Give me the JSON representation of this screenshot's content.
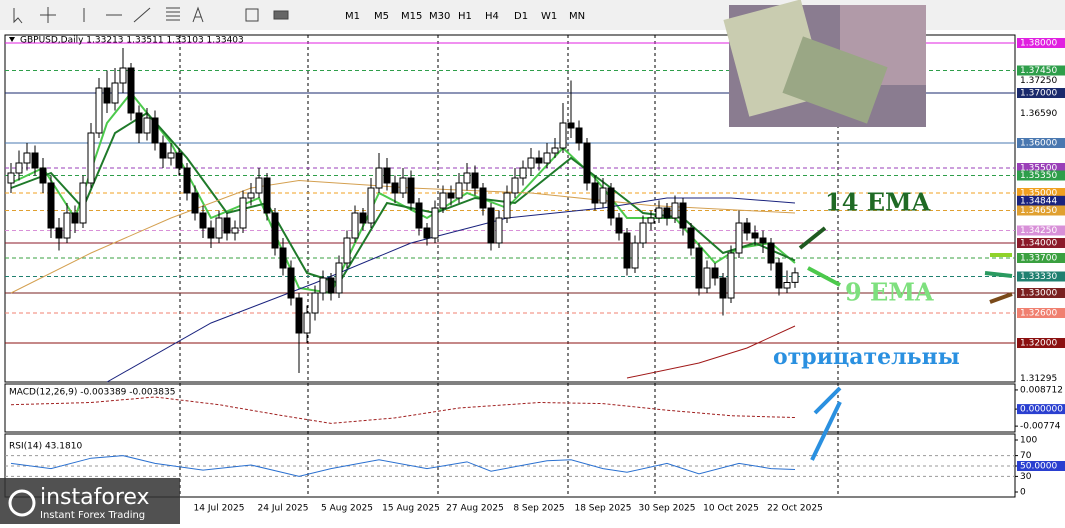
{
  "toolbar": {
    "timeframes": [
      "M1",
      "M5",
      "M15",
      "M30",
      "H1",
      "H4",
      "D1",
      "W1",
      "MN"
    ]
  },
  "logo": {
    "name": "instaforex",
    "tagline": "Instant Forex Trading"
  },
  "chart_data": {
    "type": "candlestick",
    "header": "GBPUSD,Daily  1.33213 1.33511 1.33103 1.33403",
    "categories": [
      null,
      null,
      null,
      null,
      null,
      null,
      null,
      null,
      null,
      null,
      null,
      null,
      null,
      null,
      null,
      null,
      null,
      null,
      null,
      null,
      null,
      null,
      null,
      null,
      null,
      null,
      "14 Jul 2025",
      null,
      null,
      null,
      null,
      null,
      null,
      null,
      "24 Jul 2025",
      null,
      null,
      null,
      null,
      null,
      null,
      null,
      "5 Aug 2025",
      null,
      null,
      null,
      null,
      null,
      null,
      null,
      "15 Aug 2025",
      null,
      null,
      null,
      null,
      null,
      null,
      null,
      "27 Aug 2025",
      null,
      null,
      null,
      null,
      null,
      null,
      null,
      "8 Sep 2025",
      null,
      null,
      null,
      null,
      null,
      null,
      null,
      "18 Sep 2025",
      null,
      null,
      null,
      null,
      null,
      null,
      null,
      "30 Sep 2025",
      null,
      null,
      null,
      null,
      null,
      null,
      null,
      "10 Oct 2025",
      null,
      null,
      null,
      null,
      null,
      null,
      null,
      "22 Oct 2025"
    ],
    "candles": [
      [
        1.352,
        1.356,
        1.35,
        1.354
      ],
      [
        1.354,
        1.3585,
        1.3525,
        1.356
      ],
      [
        1.356,
        1.36,
        1.3545,
        1.358
      ],
      [
        1.358,
        1.3595,
        1.3535,
        1.355
      ],
      [
        1.355,
        1.357,
        1.35,
        1.352
      ],
      [
        1.352,
        1.3535,
        1.341,
        1.343
      ],
      [
        1.343,
        1.345,
        1.3385,
        1.341
      ],
      [
        1.341,
        1.348,
        1.34,
        1.346
      ],
      [
        1.346,
        1.3475,
        1.342,
        1.344
      ],
      [
        1.344,
        1.3535,
        1.343,
        1.352
      ],
      [
        1.352,
        1.364,
        1.351,
        1.362
      ],
      [
        1.362,
        1.373,
        1.361,
        1.371
      ],
      [
        1.371,
        1.3745,
        1.366,
        1.368
      ],
      [
        1.368,
        1.375,
        1.3665,
        1.372
      ],
      [
        1.372,
        1.379,
        1.37,
        1.375
      ],
      [
        1.375,
        1.376,
        1.3645,
        1.366
      ],
      [
        1.366,
        1.3675,
        1.36,
        1.362
      ],
      [
        1.362,
        1.367,
        1.3605,
        1.365
      ],
      [
        1.365,
        1.3665,
        1.3585,
        1.36
      ],
      [
        1.36,
        1.3615,
        1.355,
        1.357
      ],
      [
        1.357,
        1.36,
        1.3555,
        1.358
      ],
      [
        1.358,
        1.359,
        1.3535,
        1.355
      ],
      [
        1.355,
        1.356,
        1.3485,
        1.35
      ],
      [
        1.35,
        1.3515,
        1.3445,
        1.346
      ],
      [
        1.346,
        1.3475,
        1.341,
        1.343
      ],
      [
        1.343,
        1.3445,
        1.339,
        1.341
      ],
      [
        1.341,
        1.3465,
        1.34,
        1.345
      ],
      [
        1.345,
        1.346,
        1.3405,
        1.342
      ],
      [
        1.342,
        1.3445,
        1.3405,
        1.343
      ],
      [
        1.343,
        1.3505,
        1.342,
        1.349
      ],
      [
        1.349,
        1.352,
        1.3475,
        1.35
      ],
      [
        1.35,
        1.355,
        1.349,
        1.353
      ],
      [
        1.353,
        1.354,
        1.3445,
        1.346
      ],
      [
        1.346,
        1.347,
        1.3375,
        1.339
      ],
      [
        1.339,
        1.341,
        1.3335,
        1.335
      ],
      [
        1.335,
        1.3365,
        1.3275,
        1.329
      ],
      [
        1.329,
        1.33,
        1.314,
        1.322
      ],
      [
        1.322,
        1.3275,
        1.32,
        1.326
      ],
      [
        1.326,
        1.3315,
        1.3245,
        1.33
      ],
      [
        1.33,
        1.3345,
        1.3285,
        1.333
      ],
      [
        1.333,
        1.334,
        1.3285,
        1.33
      ],
      [
        1.33,
        1.3375,
        1.329,
        1.336
      ],
      [
        1.336,
        1.3425,
        1.335,
        1.341
      ],
      [
        1.341,
        1.3475,
        1.34,
        1.346
      ],
      [
        1.346,
        1.347,
        1.3425,
        1.344
      ],
      [
        1.344,
        1.353,
        1.343,
        1.351
      ],
      [
        1.351,
        1.358,
        1.35,
        1.355
      ],
      [
        1.355,
        1.357,
        1.3505,
        1.352
      ],
      [
        1.352,
        1.3535,
        1.348,
        1.35
      ],
      [
        1.35,
        1.355,
        1.349,
        1.353
      ],
      [
        1.353,
        1.3545,
        1.3465,
        1.348
      ],
      [
        1.348,
        1.349,
        1.3415,
        1.343
      ],
      [
        1.343,
        1.344,
        1.3395,
        1.341
      ],
      [
        1.341,
        1.3485,
        1.34,
        1.347
      ],
      [
        1.347,
        1.3515,
        1.346,
        1.35
      ],
      [
        1.35,
        1.3515,
        1.3475,
        1.349
      ],
      [
        1.349,
        1.354,
        1.348,
        1.352
      ],
      [
        1.352,
        1.356,
        1.3505,
        1.354
      ],
      [
        1.354,
        1.3555,
        1.3495,
        1.351
      ],
      [
        1.351,
        1.352,
        1.3455,
        1.347
      ],
      [
        1.347,
        1.348,
        1.3385,
        1.34
      ],
      [
        1.34,
        1.3465,
        1.339,
        1.345
      ],
      [
        1.345,
        1.3515,
        1.344,
        1.35
      ],
      [
        1.35,
        1.355,
        1.349,
        1.353
      ],
      [
        1.353,
        1.3565,
        1.3515,
        1.355
      ],
      [
        1.355,
        1.359,
        1.3535,
        1.357
      ],
      [
        1.357,
        1.3585,
        1.3545,
        1.356
      ],
      [
        1.356,
        1.36,
        1.355,
        1.358
      ],
      [
        1.358,
        1.361,
        1.357,
        1.359
      ],
      [
        1.359,
        1.368,
        1.358,
        1.364
      ],
      [
        1.364,
        1.3725,
        1.361,
        1.363
      ],
      [
        1.363,
        1.3645,
        1.3585,
        1.36
      ],
      [
        1.36,
        1.361,
        1.3505,
        1.352
      ],
      [
        1.352,
        1.3535,
        1.3465,
        1.348
      ],
      [
        1.348,
        1.353,
        1.347,
        1.351
      ],
      [
        1.351,
        1.352,
        1.3435,
        1.345
      ],
      [
        1.345,
        1.346,
        1.3405,
        1.342
      ],
      [
        1.342,
        1.343,
        1.3335,
        1.335
      ],
      [
        1.335,
        1.3415,
        1.334,
        1.34
      ],
      [
        1.34,
        1.3455,
        1.339,
        1.344
      ],
      [
        1.344,
        1.3465,
        1.3425,
        1.345
      ],
      [
        1.345,
        1.3485,
        1.344,
        1.347
      ],
      [
        1.347,
        1.348,
        1.3435,
        1.345
      ],
      [
        1.345,
        1.3495,
        1.344,
        1.348
      ],
      [
        1.348,
        1.349,
        1.3415,
        1.343
      ],
      [
        1.343,
        1.344,
        1.3375,
        1.339
      ],
      [
        1.339,
        1.34,
        1.3295,
        1.331
      ],
      [
        1.331,
        1.3365,
        1.33,
        1.335
      ],
      [
        1.335,
        1.336,
        1.3315,
        1.333
      ],
      [
        1.333,
        1.334,
        1.3255,
        1.329
      ],
      [
        1.329,
        1.3395,
        1.328,
        1.338
      ],
      [
        1.338,
        1.3465,
        1.337,
        1.344
      ],
      [
        1.344,
        1.345,
        1.3405,
        1.342
      ],
      [
        1.342,
        1.3435,
        1.3395,
        1.341
      ],
      [
        1.341,
        1.3425,
        1.338,
        1.34
      ],
      [
        1.34,
        1.341,
        1.3345,
        1.336
      ],
      [
        1.336,
        1.337,
        1.3295,
        1.331
      ],
      [
        1.331,
        1.3345,
        1.33,
        1.3321
      ],
      [
        1.33213,
        1.33511,
        1.33103,
        1.33403
      ]
    ],
    "ylim": [
      1.3122,
      1.3816
    ],
    "price_levels": [
      {
        "value": 1.38,
        "label": "1.38000",
        "color": "#e020e0",
        "line": "solid"
      },
      {
        "value": 1.3745,
        "label": "1.37450",
        "color": "#2e9e4a",
        "line": "dashed"
      },
      {
        "value": 1.3725,
        "label": "1.37250",
        "color": null,
        "line": "none"
      },
      {
        "value": 1.37,
        "label": "1.37000",
        "color": "#1a2a6c",
        "line": "solid"
      },
      {
        "value": 1.3659,
        "label": "1.36590",
        "color": null,
        "line": "none"
      },
      {
        "value": 1.36,
        "label": "1.36000",
        "color": "#4a78b0",
        "line": "solid"
      },
      {
        "value": 1.355,
        "label": "1.35500",
        "color": "#9a3fb8",
        "line": "dashed"
      },
      {
        "value": 1.3535,
        "label": "1.35350",
        "color": "#2e9e4a",
        "line": "dashed"
      },
      {
        "value": 1.35,
        "label": "1.35000",
        "color": "#f0a020",
        "line": "dashed"
      },
      {
        "value": 1.34844,
        "label": "1.34844",
        "color": "#1a237e",
        "line": "none"
      },
      {
        "value": 1.3465,
        "label": "1.34650",
        "color": "#e0a030",
        "line": "dashed"
      },
      {
        "value": 1.3425,
        "label": "1.34250",
        "color": "#d890d8",
        "line": "dashed"
      },
      {
        "value": 1.34,
        "label": "1.34000",
        "color": "#8b1a2a",
        "line": "solid"
      },
      {
        "value": 1.337,
        "label": "1.33700",
        "color": "#3aa040",
        "line": "dashed"
      },
      {
        "value": 1.3333,
        "label": "1.33330",
        "color": "#208070",
        "line": "dashed"
      },
      {
        "value": 1.33,
        "label": "1.33000",
        "color": "#7a2020",
        "line": "solid"
      },
      {
        "value": 1.326,
        "label": "1.32600",
        "color": "#f08070",
        "line": "dashed"
      },
      {
        "value": 1.32,
        "label": "1.32000",
        "color": "#8b1010",
        "line": "solid"
      },
      {
        "value": 1.31295,
        "label": "1.31295",
        "color": null,
        "line": "none"
      }
    ],
    "lines": [
      {
        "name": "9 EMA",
        "color": "#4cc94c",
        "points": [
          [
            0,
            1.352
          ],
          [
            4,
            1.355
          ],
          [
            8,
            1.345
          ],
          [
            12,
            1.364
          ],
          [
            15,
            1.37
          ],
          [
            20,
            1.36
          ],
          [
            25,
            1.345
          ],
          [
            31,
            1.349
          ],
          [
            36,
            1.331
          ],
          [
            40,
            1.33
          ],
          [
            46,
            1.35
          ],
          [
            52,
            1.345
          ],
          [
            57,
            1.35
          ],
          [
            62,
            1.347
          ],
          [
            69,
            1.359
          ],
          [
            73,
            1.353
          ],
          [
            77,
            1.345
          ],
          [
            83,
            1.345
          ],
          [
            88,
            1.336
          ],
          [
            91,
            1.339
          ],
          [
            95,
            1.34
          ],
          [
            98,
            1.336
          ]
        ]
      },
      {
        "name": "14 EMA",
        "color": "#1f7a2a",
        "points": [
          [
            0,
            1.351
          ],
          [
            5,
            1.354
          ],
          [
            9,
            1.347
          ],
          [
            13,
            1.362
          ],
          [
            17,
            1.366
          ],
          [
            22,
            1.357
          ],
          [
            27,
            1.346
          ],
          [
            32,
            1.348
          ],
          [
            37,
            1.334
          ],
          [
            41,
            1.332
          ],
          [
            47,
            1.348
          ],
          [
            53,
            1.346
          ],
          [
            58,
            1.349
          ],
          [
            63,
            1.348
          ],
          [
            70,
            1.357
          ],
          [
            75,
            1.351
          ],
          [
            79,
            1.346
          ],
          [
            84,
            1.345
          ],
          [
            89,
            1.338
          ],
          [
            93,
            1.34
          ],
          [
            98,
            1.3365
          ]
        ]
      },
      {
        "color": "#d4a050",
        "points": [
          [
            0,
            1.33
          ],
          [
            10,
            1.338
          ],
          [
            20,
            1.345
          ],
          [
            30,
            1.351
          ],
          [
            36,
            1.3525
          ],
          [
            50,
            1.351
          ],
          [
            65,
            1.35
          ],
          [
            80,
            1.3475
          ],
          [
            98,
            1.346
          ]
        ]
      },
      {
        "color": "#1a237e",
        "points": [
          [
            12,
            1.3122
          ],
          [
            25,
            1.324
          ],
          [
            38,
            1.332
          ],
          [
            50,
            1.34
          ],
          [
            62,
            1.345
          ],
          [
            74,
            1.347
          ],
          [
            82,
            1.349
          ],
          [
            90,
            1.349
          ],
          [
            98,
            1.348
          ]
        ]
      },
      {
        "color": "#a01818",
        "points": [
          [
            77,
            1.313
          ],
          [
            86,
            1.316
          ],
          [
            92,
            1.319
          ],
          [
            98,
            1.3234
          ]
        ]
      }
    ],
    "annotations": [
      "14 EMA",
      "9 EMA",
      "отрицательны"
    ],
    "macd": {
      "label": "MACD(12,26,9) -0.003389 -0.003835",
      "ylim": [
        -0.0095,
        0.0105
      ],
      "yticks": [
        {
          "value": 0.008712,
          "label": "0.008712"
        },
        {
          "value": 0,
          "label": "0.000000"
        },
        {
          "value": -0.00774,
          "label": "-0.00774"
        }
      ],
      "signal": [
        [
          0,
          0.002
        ],
        [
          10,
          0.003
        ],
        [
          18,
          0.0055
        ],
        [
          26,
          0.002
        ],
        [
          34,
          -0.003
        ],
        [
          40,
          -0.0065
        ],
        [
          48,
          -0.004
        ],
        [
          56,
          0.0005
        ],
        [
          66,
          0.003
        ],
        [
          74,
          0.0025
        ],
        [
          82,
          -0.0005
        ],
        [
          90,
          -0.003
        ],
        [
          98,
          -0.003835
        ]
      ]
    },
    "rsi": {
      "label": "RSI(14) 43.1810",
      "ylim": [
        0,
        100
      ],
      "yticks": [
        100,
        70,
        {
          "value": 50,
          "label": "50.0000"
        },
        30,
        0
      ],
      "points": [
        [
          0,
          55
        ],
        [
          5,
          45
        ],
        [
          10,
          65
        ],
        [
          14,
          70
        ],
        [
          18,
          55
        ],
        [
          24,
          42
        ],
        [
          30,
          52
        ],
        [
          36,
          30
        ],
        [
          40,
          45
        ],
        [
          46,
          62
        ],
        [
          52,
          45
        ],
        [
          57,
          58
        ],
        [
          60,
          40
        ],
        [
          67,
          60
        ],
        [
          70,
          62
        ],
        [
          74,
          45
        ],
        [
          77,
          38
        ],
        [
          82,
          55
        ],
        [
          86,
          35
        ],
        [
          91,
          55
        ],
        [
          95,
          45
        ],
        [
          98,
          43.181
        ]
      ]
    }
  }
}
